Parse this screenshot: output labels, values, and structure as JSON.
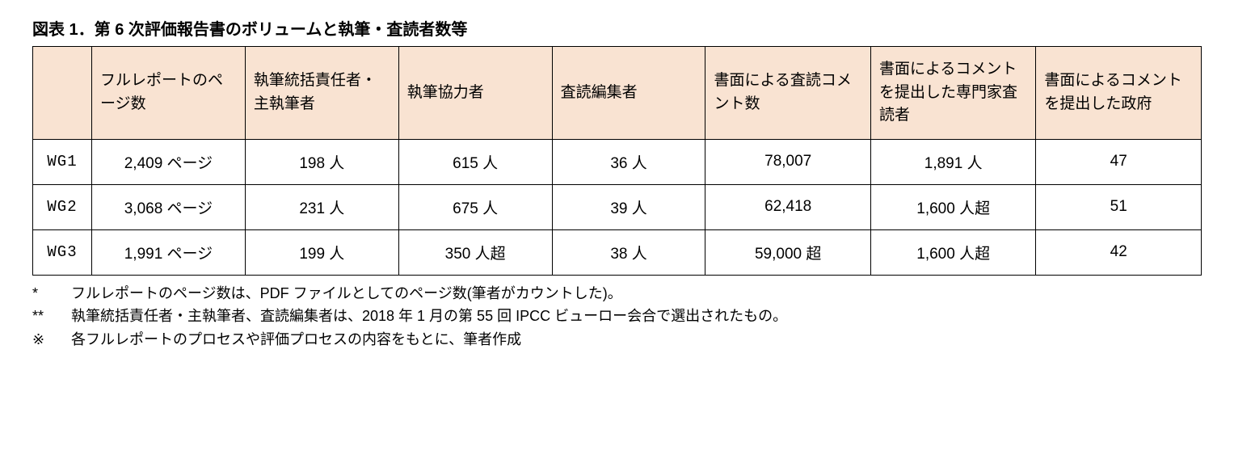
{
  "title": "図表 1．第 6 次評価報告書のボリュームと執筆・査読者数等",
  "table": {
    "header_bg": "#f9e3d2",
    "border_color": "#000000",
    "font_size": 19,
    "header_font_size": 19,
    "columns": [
      "",
      "フルレポートのページ数",
      "執筆統括責任者・主執筆者",
      "執筆協力者",
      "査読編集者",
      "書面による査読コメント数",
      "書面によるコメントを提出した専門家査読者",
      "書面によるコメントを提出した政府"
    ],
    "rows": [
      {
        "label": "WG1",
        "cells": [
          "2,409 ページ",
          "198 人",
          "615 人",
          "36 人",
          "78,007",
          "1,891 人",
          "47"
        ]
      },
      {
        "label": "WG2",
        "cells": [
          "3,068 ページ",
          "231 人",
          "675 人",
          "39 人",
          "62,418",
          "1,600 人超",
          "51"
        ]
      },
      {
        "label": "WG3",
        "cells": [
          "1,991 ページ",
          "199 人",
          "350 人超",
          "38 人",
          "59,000 超",
          "1,600 人超",
          "42"
        ]
      }
    ]
  },
  "footnotes": [
    {
      "mark": "*",
      "text": "フルレポートのページ数は、PDF ファイルとしてのページ数(筆者がカウントした)。"
    },
    {
      "mark": "**",
      "text": "執筆統括責任者・主執筆者、査読編集者は、2018 年 1 月の第 55 回 IPCC ビューロー会合で選出されたもの。"
    },
    {
      "mark": "※",
      "text": "各フルレポートのプロセスや評価プロセスの内容をもとに、筆者作成"
    }
  ]
}
